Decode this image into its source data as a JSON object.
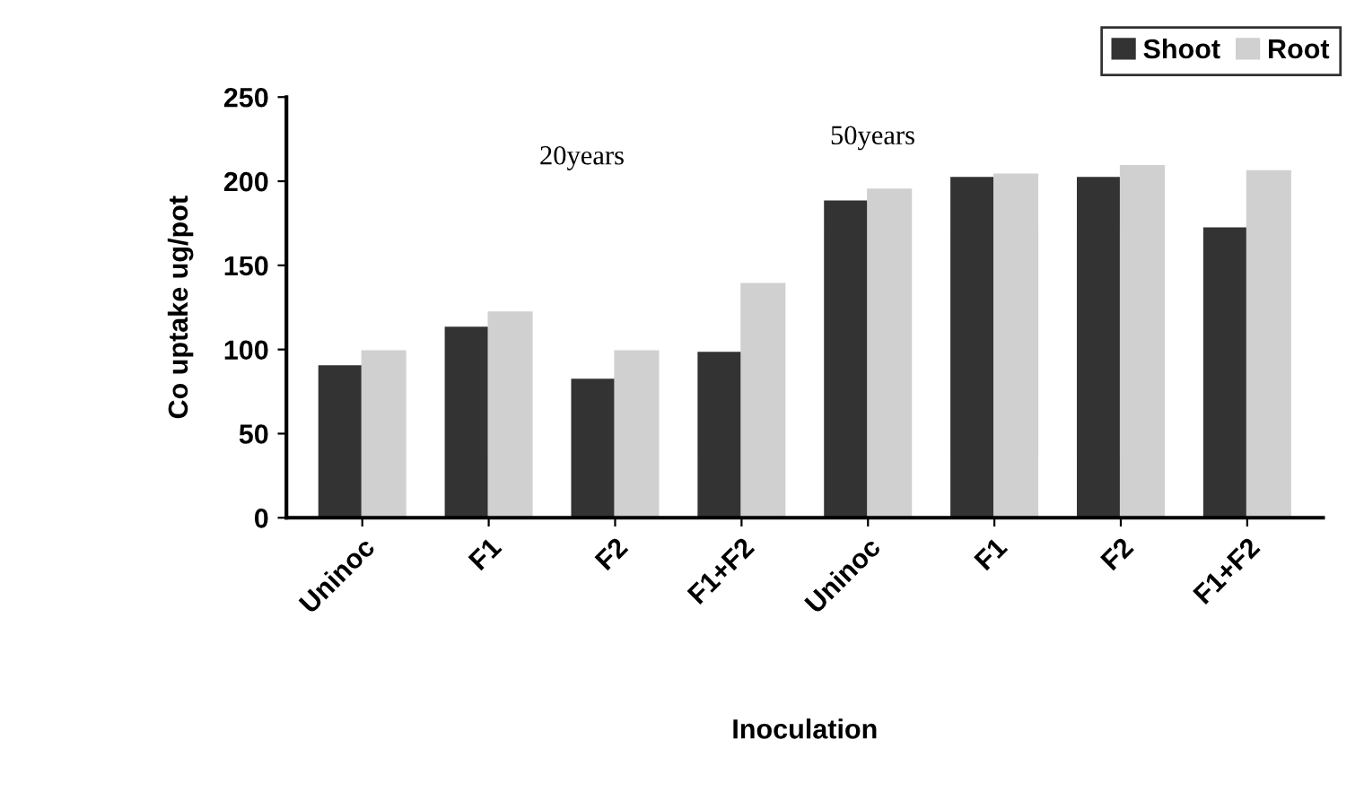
{
  "chart_data": {
    "type": "bar",
    "xlabel": "Inoculation",
    "ylabel": "Co uptake ug/pot",
    "categories": [
      "Uninoc",
      "F1",
      "F2",
      "F1+F2",
      "Uninoc",
      "F1",
      "F2",
      "F1+F2"
    ],
    "series": [
      {
        "name": "Shoot",
        "color": "#333333",
        "values": [
          90,
          113,
          82,
          98,
          188,
          202,
          202,
          172
        ]
      },
      {
        "name": "Root",
        "color": "#d0d0d0",
        "values": [
          99,
          122,
          99,
          139,
          195,
          204,
          209,
          206
        ]
      }
    ],
    "ylim": [
      0,
      250
    ],
    "yticks": [
      0,
      50,
      100,
      150,
      200,
      250
    ],
    "grid": false,
    "legend": "top right",
    "annotations": [
      "20years",
      "50years"
    ]
  }
}
